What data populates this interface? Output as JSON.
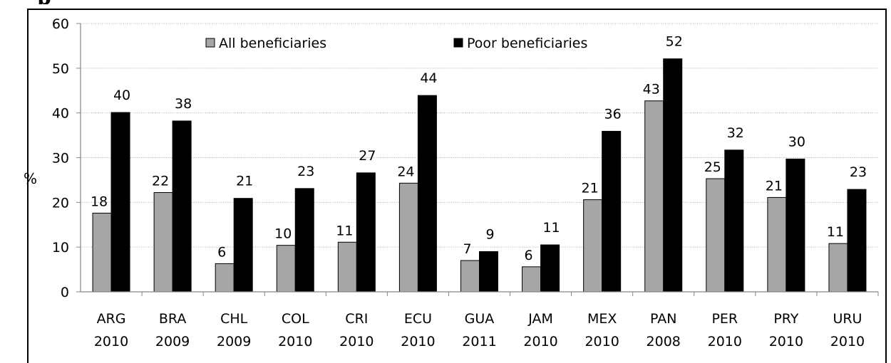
{
  "header_fragment": "p",
  "chart_data": {
    "type": "bar",
    "ylabel": "%",
    "ylim": [
      0,
      60
    ],
    "yticks": [
      0,
      10,
      20,
      30,
      40,
      50,
      60
    ],
    "grid": true,
    "legend_position": "top",
    "categories": [
      {
        "line1": "ARG",
        "line2": "2010"
      },
      {
        "line1": "BRA",
        "line2": "2009"
      },
      {
        "line1": "CHL",
        "line2": "2009"
      },
      {
        "line1": "COL",
        "line2": "2010"
      },
      {
        "line1": "CRI",
        "line2": "2010"
      },
      {
        "line1": "ECU",
        "line2": "2010"
      },
      {
        "line1": "GUA",
        "line2": "2011"
      },
      {
        "line1": "JAM",
        "line2": "2010"
      },
      {
        "line1": "MEX",
        "line2": "2010"
      },
      {
        "line1": "PAN",
        "line2": "2008"
      },
      {
        "line1": "PER",
        "line2": "2010"
      },
      {
        "line1": "PRY",
        "line2": "2010"
      },
      {
        "line1": "URU",
        "line2": "2010"
      }
    ],
    "series": [
      {
        "name": "All beneficiaries",
        "color": "#a6a6a6",
        "values": [
          17.6,
          22.2,
          6.3,
          10.4,
          11.1,
          24.3,
          7.0,
          5.6,
          20.6,
          42.7,
          25.3,
          21.1,
          10.8
        ],
        "labels": [
          "18",
          "22",
          "6",
          "10",
          "11",
          "24",
          "7",
          "6",
          "21",
          "43",
          "25",
          "21",
          "11"
        ]
      },
      {
        "name": "Poor beneficiaries",
        "color": "#000000",
        "values": [
          40.1,
          38.2,
          20.9,
          23.1,
          26.6,
          43.9,
          9.0,
          10.5,
          35.9,
          52.1,
          31.7,
          29.7,
          22.9
        ],
        "labels": [
          "40",
          "38",
          "21",
          "23",
          "27",
          "44",
          "9",
          "11",
          "36",
          "52",
          "32",
          "30",
          "23"
        ]
      }
    ]
  }
}
